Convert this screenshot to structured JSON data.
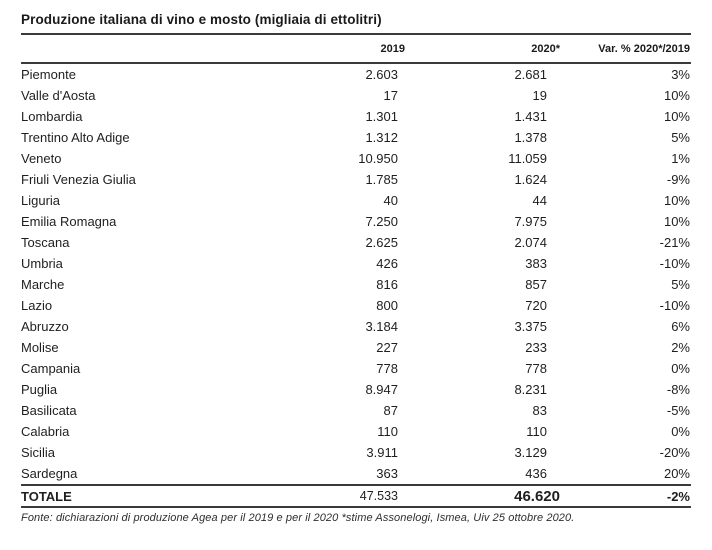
{
  "title": "Produzione italiana di vino e mosto (migliaia di ettolitri)",
  "table": {
    "columns": {
      "region": "",
      "y2019": "2019",
      "y2020": "2020*",
      "var": "Var. % 2020*/2019"
    },
    "rows": [
      {
        "region": "Piemonte",
        "y2019": "2.603",
        "y2020": "2.681",
        "var": "3%"
      },
      {
        "region": "Valle d'Aosta",
        "y2019": "17",
        "y2020": "19",
        "var": "10%"
      },
      {
        "region": "Lombardia",
        "y2019": "1.301",
        "y2020": "1.431",
        "var": "10%"
      },
      {
        "region": "Trentino Alto Adige",
        "y2019": "1.312",
        "y2020": "1.378",
        "var": "5%"
      },
      {
        "region": "Veneto",
        "y2019": "10.950",
        "y2020": "11.059",
        "var": "1%"
      },
      {
        "region": "Friuli Venezia Giulia",
        "y2019": "1.785",
        "y2020": "1.624",
        "var": "-9%"
      },
      {
        "region": "Liguria",
        "y2019": "40",
        "y2020": "44",
        "var": "10%"
      },
      {
        "region": "Emilia Romagna",
        "y2019": "7.250",
        "y2020": "7.975",
        "var": "10%"
      },
      {
        "region": "Toscana",
        "y2019": "2.625",
        "y2020": "2.074",
        "var": "-21%"
      },
      {
        "region": "Umbria",
        "y2019": "426",
        "y2020": "383",
        "var": "-10%"
      },
      {
        "region": "Marche",
        "y2019": "816",
        "y2020": "857",
        "var": "5%"
      },
      {
        "region": "Lazio",
        "y2019": "800",
        "y2020": "720",
        "var": "-10%"
      },
      {
        "region": "Abruzzo",
        "y2019": "3.184",
        "y2020": "3.375",
        "var": "6%"
      },
      {
        "region": "Molise",
        "y2019": "227",
        "y2020": "233",
        "var": "2%"
      },
      {
        "region": "Campania",
        "y2019": "778",
        "y2020": "778",
        "var": "0%"
      },
      {
        "region": "Puglia",
        "y2019": "8.947",
        "y2020": "8.231",
        "var": "-8%"
      },
      {
        "region": "Basilicata",
        "y2019": "87",
        "y2020": "83",
        "var": "-5%"
      },
      {
        "region": "Calabria",
        "y2019": "110",
        "y2020": "110",
        "var": "0%"
      },
      {
        "region": "Sicilia",
        "y2019": "3.911",
        "y2020": "3.129",
        "var": "-20%"
      },
      {
        "region": "Sardegna",
        "y2019": "363",
        "y2020": "436",
        "var": "20%"
      }
    ],
    "total": {
      "region": "TOTALE",
      "y2019": "47.533",
      "y2020": "46.620",
      "var": "-2%"
    }
  },
  "footnote": "Fonte: dichiarazioni di produzione Agea per il 2019 e per il 2020 *stime Assonelogi, Ismea, Uiv 25 ottobre 2020."
}
